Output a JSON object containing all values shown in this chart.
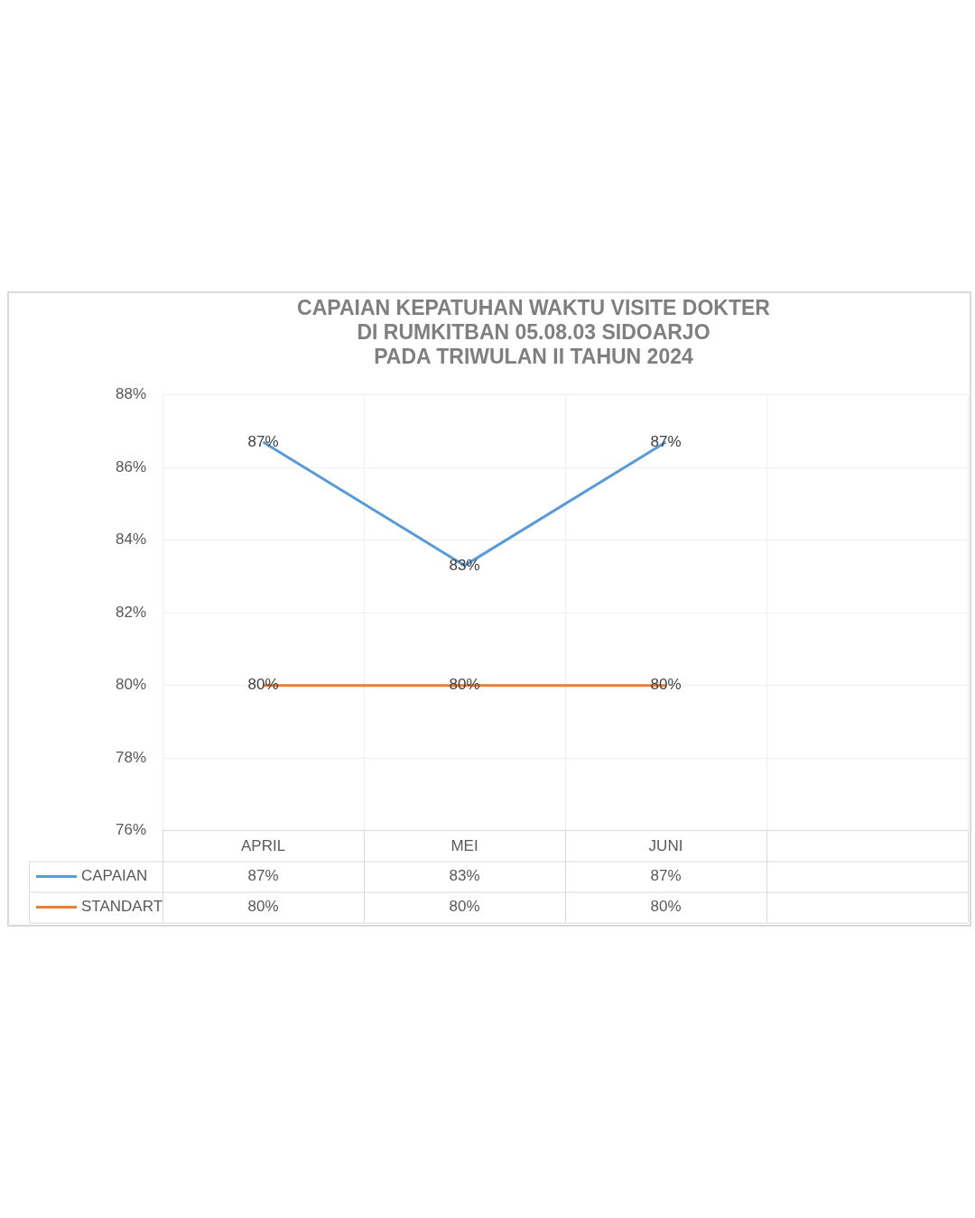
{
  "chart_data": {
    "type": "line",
    "title": "CAPAIAN KEPATUHAN WAKTU VISITE DOKTER\nDI RUMKITBAN 05.08.03 SIDOARJO\nPADA TRIWULAN II TAHUN 2024",
    "categories": [
      "APRIL",
      "MEI",
      "JUNI",
      null
    ],
    "series": [
      {
        "name": "CAPAIAN",
        "color": "#5b9bd5",
        "values": [
          86.7,
          83.3,
          86.7,
          null
        ],
        "value_labels": [
          "87%",
          "83%",
          "87%",
          null
        ]
      },
      {
        "name": "STANDART",
        "color": "#ed7d31",
        "values": [
          80,
          80,
          80,
          null
        ],
        "value_labels": [
          "80%",
          "80%",
          "80%",
          null
        ]
      }
    ],
    "ylim": [
      76,
      88
    ],
    "yticks": [
      {
        "value": 76,
        "label": "76%"
      },
      {
        "value": 78,
        "label": "78%"
      },
      {
        "value": 80,
        "label": "80%"
      },
      {
        "value": 82,
        "label": "82%"
      },
      {
        "value": 84,
        "label": "84%"
      },
      {
        "value": 86,
        "label": "86%"
      },
      {
        "value": 88,
        "label": "88%"
      }
    ],
    "grid": true,
    "legend": "bottom",
    "marker": "none",
    "line_style": "solid"
  }
}
